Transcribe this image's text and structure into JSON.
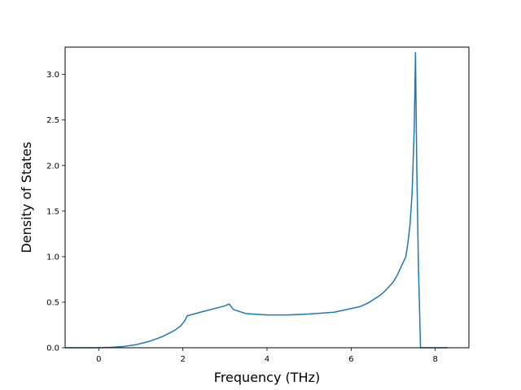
{
  "chart_data": {
    "type": "line",
    "title": "",
    "xlabel": "Frequency (THz)",
    "ylabel": "Density of States",
    "xlim": [
      -0.8,
      8.8
    ],
    "ylim": [
      0.0,
      3.3
    ],
    "xticks": [
      0,
      2,
      4,
      6,
      8
    ],
    "xtick_labels": [
      "0",
      "2",
      "4",
      "6",
      "8"
    ],
    "yticks": [
      0.0,
      0.5,
      1.0,
      1.5,
      2.0,
      2.5,
      3.0
    ],
    "ytick_labels": [
      "0.0",
      "0.5",
      "1.0",
      "1.5",
      "2.0",
      "2.5",
      "3.0"
    ],
    "grid": false,
    "legend": "none",
    "series": [
      {
        "color": "#1f77b4",
        "x": [
          -0.8,
          0.0,
          0.3,
          0.6,
          0.9,
          1.2,
          1.5,
          1.8,
          1.95,
          2.05,
          2.1,
          2.5,
          3.0,
          3.1,
          3.2,
          3.5,
          4.0,
          4.5,
          5.0,
          5.3,
          5.6,
          5.8,
          6.0,
          6.2,
          6.4,
          6.5,
          6.6,
          6.7,
          6.8,
          6.9,
          7.0,
          7.1,
          7.2,
          7.3,
          7.35,
          7.4,
          7.45,
          7.5,
          7.53,
          7.56,
          7.6,
          7.65,
          7.8,
          8.3
        ],
        "y": [
          0.0,
          0.0,
          0.005,
          0.015,
          0.035,
          0.07,
          0.12,
          0.19,
          0.24,
          0.3,
          0.35,
          0.4,
          0.46,
          0.48,
          0.42,
          0.375,
          0.36,
          0.36,
          0.37,
          0.38,
          0.39,
          0.41,
          0.43,
          0.45,
          0.49,
          0.52,
          0.55,
          0.58,
          0.62,
          0.67,
          0.72,
          0.8,
          0.9,
          1.0,
          1.15,
          1.35,
          1.7,
          2.4,
          3.24,
          2.0,
          0.9,
          0.0,
          0.0,
          0.0
        ]
      }
    ]
  }
}
